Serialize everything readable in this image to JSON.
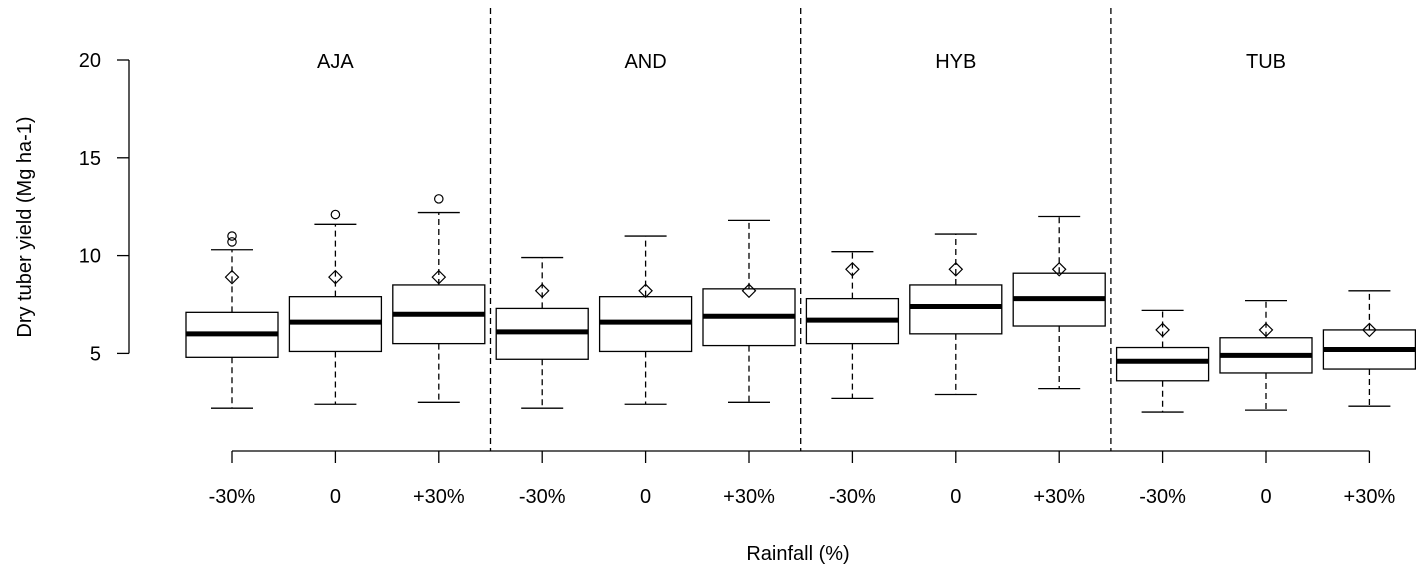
{
  "chart_data": {
    "type": "boxplot",
    "ylabel": "Dry tuber yield (Mg ha-1)",
    "xlabel": "Rainfall (%)",
    "y_ticks": [
      5,
      10,
      15,
      20
    ],
    "ylim": [
      0,
      20
    ],
    "groups": [
      "AJA",
      "AND",
      "HYB",
      "TUB"
    ],
    "categories": [
      "-30%",
      "0",
      "+30%"
    ],
    "boxes": [
      {
        "group": "AJA",
        "category": "-30%",
        "min": 2.2,
        "q1": 4.8,
        "median": 6.0,
        "q3": 7.1,
        "max": 10.3,
        "mean": 8.9,
        "outliers": [
          10.7,
          11.0
        ]
      },
      {
        "group": "AJA",
        "category": "0",
        "min": 2.4,
        "q1": 5.1,
        "median": 6.6,
        "q3": 7.9,
        "max": 11.6,
        "mean": 8.9,
        "outliers": [
          12.1
        ]
      },
      {
        "group": "AJA",
        "category": "+30%",
        "min": 2.5,
        "q1": 5.5,
        "median": 7.0,
        "q3": 8.5,
        "max": 12.2,
        "mean": 8.9,
        "outliers": [
          12.9
        ]
      },
      {
        "group": "AND",
        "category": "-30%",
        "min": 2.2,
        "q1": 4.7,
        "median": 6.1,
        "q3": 7.3,
        "max": 9.9,
        "mean": 8.2,
        "outliers": []
      },
      {
        "group": "AND",
        "category": "0",
        "min": 2.4,
        "q1": 5.1,
        "median": 6.6,
        "q3": 7.9,
        "max": 11.0,
        "mean": 8.2,
        "outliers": []
      },
      {
        "group": "AND",
        "category": "+30%",
        "min": 2.5,
        "q1": 5.4,
        "median": 6.9,
        "q3": 8.3,
        "max": 11.8,
        "mean": 8.2,
        "outliers": []
      },
      {
        "group": "HYB",
        "category": "-30%",
        "min": 2.7,
        "q1": 5.5,
        "median": 6.7,
        "q3": 7.8,
        "max": 10.2,
        "mean": 9.3,
        "outliers": []
      },
      {
        "group": "HYB",
        "category": "0",
        "min": 2.9,
        "q1": 6.0,
        "median": 7.4,
        "q3": 8.5,
        "max": 11.1,
        "mean": 9.3,
        "outliers": []
      },
      {
        "group": "HYB",
        "category": "+30%",
        "min": 3.2,
        "q1": 6.4,
        "median": 7.8,
        "q3": 9.1,
        "max": 12.0,
        "mean": 9.3,
        "outliers": []
      },
      {
        "group": "TUB",
        "category": "-30%",
        "min": 2.0,
        "q1": 3.6,
        "median": 4.6,
        "q3": 5.3,
        "max": 7.2,
        "mean": 6.2,
        "outliers": []
      },
      {
        "group": "TUB",
        "category": "0",
        "min": 2.1,
        "q1": 4.0,
        "median": 4.9,
        "q3": 5.8,
        "max": 7.7,
        "mean": 6.2,
        "outliers": []
      },
      {
        "group": "TUB",
        "category": "+30%",
        "min": 2.3,
        "q1": 4.2,
        "median": 5.2,
        "q3": 6.2,
        "max": 8.2,
        "mean": 6.2,
        "outliers": []
      }
    ]
  }
}
